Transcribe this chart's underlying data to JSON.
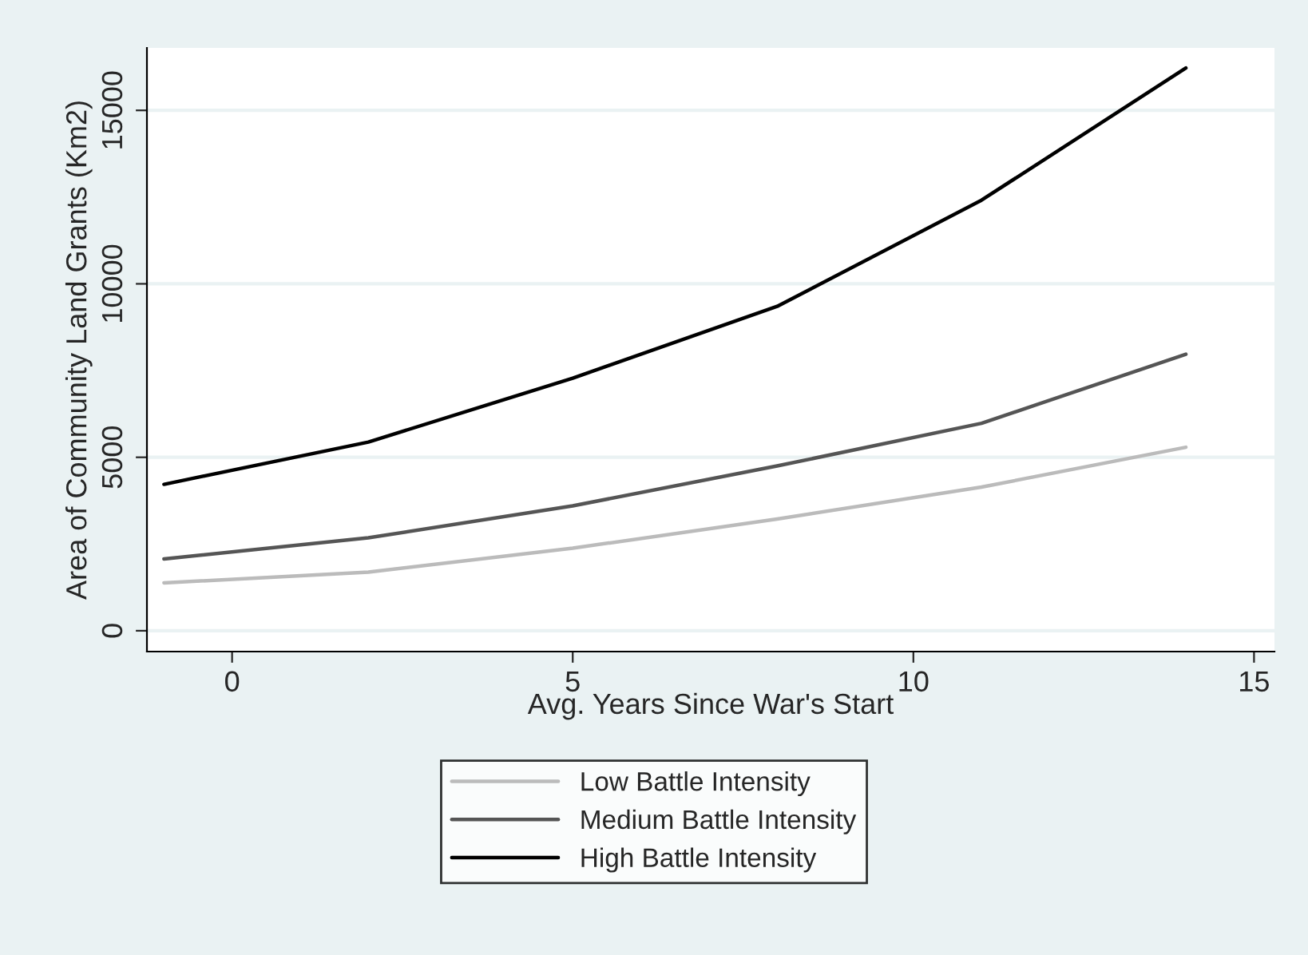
{
  "chart_data": {
    "type": "line",
    "xlabel": "Avg. Years Since War's Start",
    "ylabel": "Area of Community Land Grants (Km2)",
    "x": [
      -1,
      2,
      5,
      8,
      11,
      14
    ],
    "series": [
      {
        "name": "Low Battle Intensity",
        "color": "#bbbbbb",
        "values": [
          1380,
          1690,
          2380,
          3220,
          4140,
          5290
        ]
      },
      {
        "name": "Medium Battle Intensity",
        "color": "#555555",
        "values": [
          2070,
          2680,
          3600,
          4750,
          5980,
          7970
        ]
      },
      {
        "name": "High Battle Intensity",
        "color": "#000000",
        "values": [
          4220,
          5440,
          7280,
          9350,
          12410,
          16220
        ]
      }
    ],
    "xlim": [
      -1.25,
      15.3
    ],
    "ylim": [
      -600,
      16800
    ],
    "xticks": [
      0,
      5,
      10,
      15
    ],
    "yticks": [
      0,
      5000,
      10000,
      15000
    ],
    "grid": "y",
    "legend": "bottom",
    "line_style": "solid",
    "marker": "none"
  }
}
